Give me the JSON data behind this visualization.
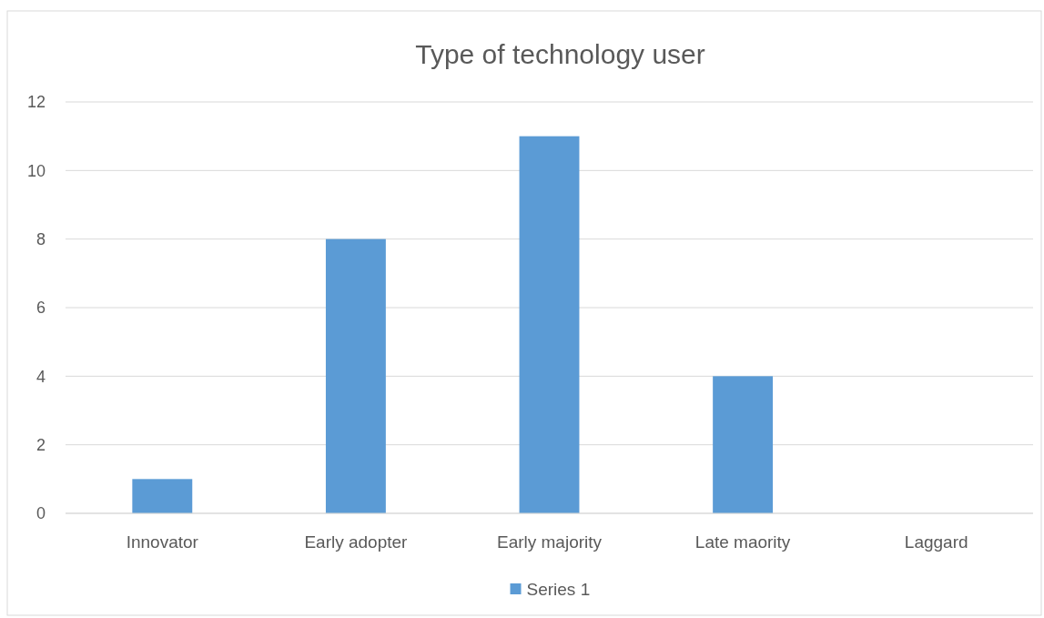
{
  "chart_data": {
    "type": "bar",
    "title": "Type of technology user",
    "categories": [
      "Innovator",
      "Early adopter",
      "Early majority",
      "Late maority",
      "Laggard"
    ],
    "series": [
      {
        "name": "Series 1",
        "color": "#5b9bd5",
        "values": [
          1,
          8,
          11,
          4,
          0
        ]
      }
    ],
    "ylim": [
      0,
      12
    ],
    "yticks": [
      0,
      2,
      4,
      6,
      8,
      10,
      12
    ],
    "grid": "y",
    "legend": "bottom"
  }
}
